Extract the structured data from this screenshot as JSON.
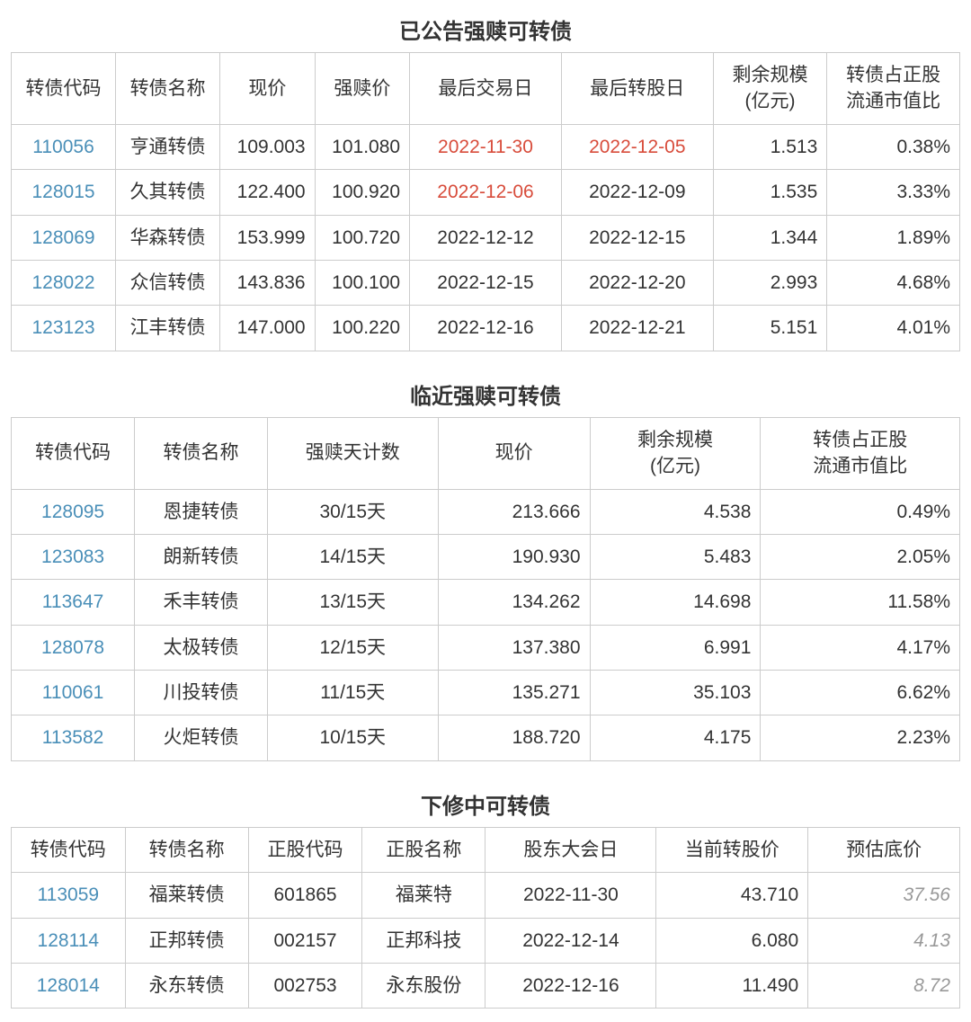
{
  "colors": {
    "link": "#4a8fb8",
    "border": "#cccccc",
    "text": "#333333",
    "red": "#d84c3b",
    "gray": "#999999"
  },
  "table1": {
    "title": "已公告强赎可转债",
    "headers": [
      "转债代码",
      "转债名称",
      "现价",
      "强赎价",
      "最后交易日",
      "最后转股日",
      "剩余规模\n(亿元)",
      "转债占正股\n流通市值比"
    ],
    "colwidths": [
      "11%",
      "11%",
      "10%",
      "10%",
      "16%",
      "16%",
      "12%",
      "14%"
    ],
    "rows": [
      {
        "code": "110056",
        "name": "亨通转债",
        "price": "109.003",
        "redeem": "101.080",
        "lastTrade": "2022-11-30",
        "lastTradeRed": true,
        "lastConv": "2022-12-05",
        "lastConvRed": true,
        "scale": "1.513",
        "ratio": "0.38%"
      },
      {
        "code": "128015",
        "name": "久其转债",
        "price": "122.400",
        "redeem": "100.920",
        "lastTrade": "2022-12-06",
        "lastTradeRed": true,
        "lastConv": "2022-12-09",
        "lastConvRed": false,
        "scale": "1.535",
        "ratio": "3.33%"
      },
      {
        "code": "128069",
        "name": "华森转债",
        "price": "153.999",
        "redeem": "100.720",
        "lastTrade": "2022-12-12",
        "lastTradeRed": false,
        "lastConv": "2022-12-15",
        "lastConvRed": false,
        "scale": "1.344",
        "ratio": "1.89%"
      },
      {
        "code": "128022",
        "name": "众信转债",
        "price": "143.836",
        "redeem": "100.100",
        "lastTrade": "2022-12-15",
        "lastTradeRed": false,
        "lastConv": "2022-12-20",
        "lastConvRed": false,
        "scale": "2.993",
        "ratio": "4.68%"
      },
      {
        "code": "123123",
        "name": "江丰转债",
        "price": "147.000",
        "redeem": "100.220",
        "lastTrade": "2022-12-16",
        "lastTradeRed": false,
        "lastConv": "2022-12-21",
        "lastConvRed": false,
        "scale": "5.151",
        "ratio": "4.01%"
      }
    ]
  },
  "table2": {
    "title": "临近强赎可转债",
    "headers": [
      "转债代码",
      "转债名称",
      "强赎天计数",
      "现价",
      "剩余规模\n(亿元)",
      "转债占正股\n流通市值比"
    ],
    "colwidths": [
      "13%",
      "14%",
      "18%",
      "16%",
      "18%",
      "21%"
    ],
    "rows": [
      {
        "code": "128095",
        "name": "恩捷转债",
        "days": "30/15天",
        "price": "213.666",
        "scale": "4.538",
        "ratio": "0.49%"
      },
      {
        "code": "123083",
        "name": "朗新转债",
        "days": "14/15天",
        "price": "190.930",
        "scale": "5.483",
        "ratio": "2.05%"
      },
      {
        "code": "113647",
        "name": "禾丰转债",
        "days": "13/15天",
        "price": "134.262",
        "scale": "14.698",
        "ratio": "11.58%"
      },
      {
        "code": "128078",
        "name": "太极转债",
        "days": "12/15天",
        "price": "137.380",
        "scale": "6.991",
        "ratio": "4.17%"
      },
      {
        "code": "110061",
        "name": "川投转债",
        "days": "11/15天",
        "price": "135.271",
        "scale": "35.103",
        "ratio": "6.62%"
      },
      {
        "code": "113582",
        "name": "火炬转债",
        "days": "10/15天",
        "price": "188.720",
        "scale": "4.175",
        "ratio": "2.23%"
      }
    ]
  },
  "table3": {
    "title": "下修中可转债",
    "headers": [
      "转债代码",
      "转债名称",
      "正股代码",
      "正股名称",
      "股东大会日",
      "当前转股价",
      "预估底价"
    ],
    "colwidths": [
      "12%",
      "13%",
      "12%",
      "13%",
      "18%",
      "16%",
      "16%"
    ],
    "rows": [
      {
        "code": "113059",
        "name": "福莱转债",
        "stockCode": "601865",
        "stockName": "福莱特",
        "meeting": "2022-11-30",
        "convPrice": "43.710",
        "floor": "37.56"
      },
      {
        "code": "128114",
        "name": "正邦转债",
        "stockCode": "002157",
        "stockName": "正邦科技",
        "meeting": "2022-12-14",
        "convPrice": "6.080",
        "floor": "4.13"
      },
      {
        "code": "128014",
        "name": "永东转债",
        "stockCode": "002753",
        "stockName": "永东股份",
        "meeting": "2022-12-16",
        "convPrice": "11.490",
        "floor": "8.72"
      }
    ]
  }
}
